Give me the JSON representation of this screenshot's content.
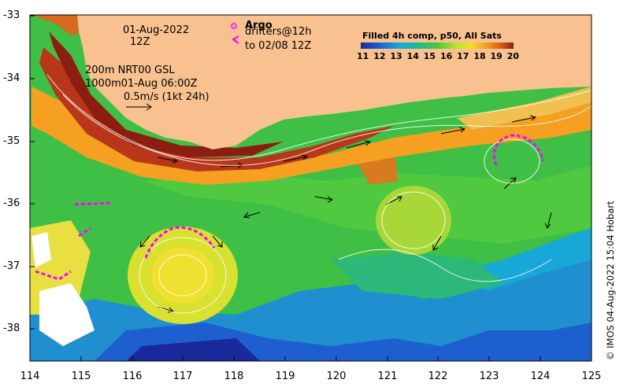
{
  "header": {
    "date": "01-Aug-2022",
    "hour": "12Z"
  },
  "legend_argo": {
    "title": "Argo",
    "line1": "drifters@12h",
    "line2": "to 02/08 12Z"
  },
  "model_info": {
    "line1": "200m  NRT00 GSL",
    "line2": "1000m01-Aug 06:00Z",
    "line3": "0.5m/s (1kt 24h)"
  },
  "colorbar": {
    "title": "Filled 4h comp, p50, All Sats",
    "ticks": [
      "11",
      "12",
      "13",
      "14",
      "15",
      "16",
      "17",
      "18",
      "19",
      "20"
    ]
  },
  "axes": {
    "y_ticks": [
      "-33",
      "-34",
      "-35",
      "-36",
      "-37",
      "-38"
    ],
    "x_ticks": [
      "114",
      "115",
      "116",
      "117",
      "118",
      "119",
      "120",
      "121",
      "122",
      "123",
      "124",
      "125"
    ]
  },
  "credit": "© IMOS 04-Aug-2022 15:04 Hobart",
  "colors": {
    "land": "#f9c190",
    "warm_current": "#8b1e10",
    "cold_water": "#1e5fd0",
    "drifter": "#ff00ff"
  }
}
